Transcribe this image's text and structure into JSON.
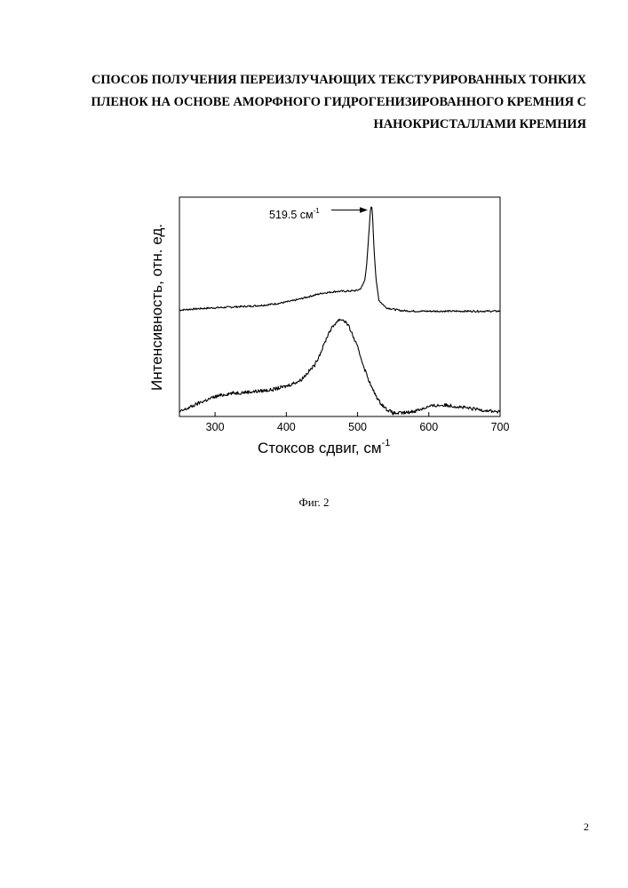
{
  "document": {
    "title_lines": [
      "СПОСОБ ПОЛУЧЕНИЯ ПЕРЕИЗЛУЧАЮЩИХ ТЕКСТУРИРОВАННЫХ ТОНКИХ",
      "ПЛЕНОК НА ОСНОВЕ АМОРФНОГО ГИДРОГЕНИЗИРОВАННОГО КРЕМНИЯ С",
      "НАНОКРИСТАЛЛАМИ КРЕМНИЯ"
    ],
    "figure_caption": "Фиг. 2",
    "page_number": "2"
  },
  "chart_data": {
    "type": "line",
    "xlabel": "Стоксов сдвиг, см",
    "xlabel_superscript": "-1",
    "ylabel": "Интенсивность, отн. ед.",
    "xlim": [
      250,
      700
    ],
    "ylim": [
      0,
      1
    ],
    "x_ticks": [
      300,
      400,
      500,
      600,
      700
    ],
    "y_ticks_labeled": false,
    "grid": false,
    "annotation": {
      "text": "519.5 см",
      "superscript": "-1",
      "arrow_to_x": 519.5
    },
    "series": [
      {
        "x": [
          250,
          270,
          290,
          310,
          330,
          350,
          370,
          390,
          410,
          430,
          450,
          470,
          490,
          500,
          505,
          510,
          513,
          516,
          518,
          519.5,
          521,
          523,
          526,
          530,
          540,
          560,
          580,
          600,
          620,
          640,
          660,
          680,
          700
        ],
        "values": [
          0.485,
          0.49,
          0.494,
          0.497,
          0.5,
          0.503,
          0.508,
          0.516,
          0.528,
          0.545,
          0.562,
          0.57,
          0.572,
          0.575,
          0.585,
          0.62,
          0.7,
          0.84,
          0.94,
          0.965,
          0.92,
          0.77,
          0.62,
          0.53,
          0.496,
          0.483,
          0.48,
          0.48,
          0.48,
          0.48,
          0.48,
          0.48,
          0.48
        ]
      },
      {
        "x": [
          250,
          260,
          270,
          280,
          300,
          320,
          340,
          360,
          380,
          400,
          420,
          440,
          450,
          460,
          470,
          475,
          480,
          485,
          490,
          500,
          510,
          520,
          530,
          540,
          550,
          560,
          570,
          580,
          590,
          600,
          610,
          620,
          630,
          640,
          660,
          680,
          700
        ],
        "values": [
          0.02,
          0.035,
          0.05,
          0.065,
          0.09,
          0.105,
          0.11,
          0.115,
          0.122,
          0.138,
          0.165,
          0.235,
          0.305,
          0.385,
          0.43,
          0.443,
          0.44,
          0.425,
          0.395,
          0.315,
          0.215,
          0.13,
          0.07,
          0.035,
          0.015,
          0.015,
          0.018,
          0.025,
          0.035,
          0.045,
          0.05,
          0.052,
          0.05,
          0.045,
          0.035,
          0.028,
          0.02
        ]
      }
    ]
  }
}
